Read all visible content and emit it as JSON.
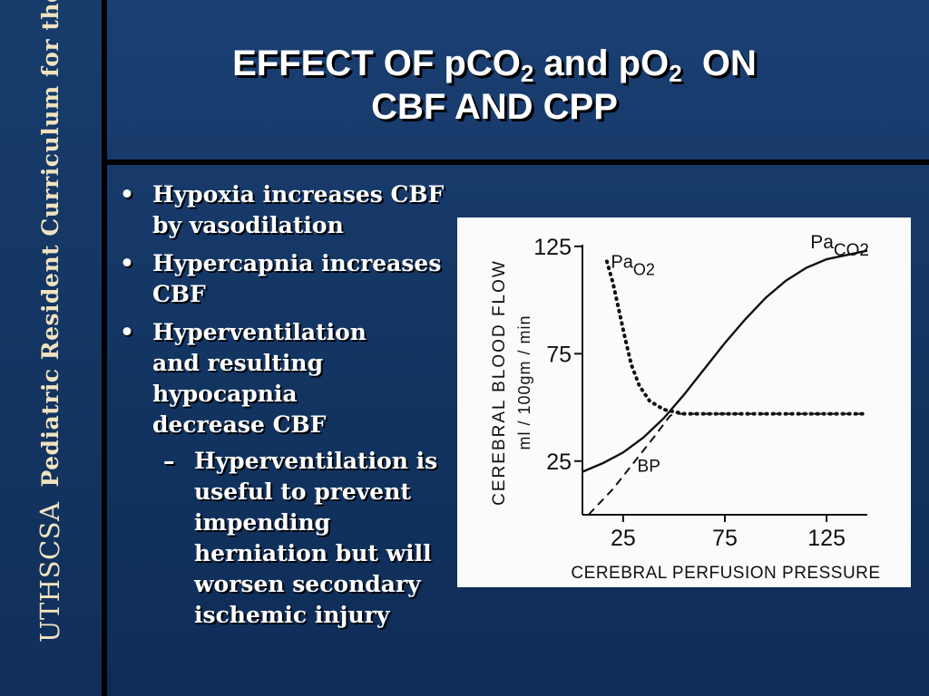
{
  "sidebar": {
    "org": "UTHSCSA",
    "program": "Pediatric Resident Curriculum for the PICU"
  },
  "title": {
    "line1_a": "EFFECT OF pCO",
    "line1_sub1": "2",
    "line1_b": " and pO",
    "line1_sub2": "2",
    "line1_c": "  ON",
    "line2": "CBF AND CPP"
  },
  "bullets": [
    {
      "bullet": "•",
      "text": "Hypoxia increases CBF by vasodilation"
    },
    {
      "bullet": "•",
      "text": "Hypercapnia increases CBF"
    },
    {
      "bullet": "•",
      "text": "Hyperventilation and resulting hypocapnia decrease CBF"
    }
  ],
  "sub_bullet": {
    "bullet": "–",
    "text": "Hyperventilation is useful to prevent impending herniation but will worsen secondary ischemic injury"
  },
  "chart_data": {
    "type": "line",
    "xlabel": "CEREBRAL PERFUSION PRESSURE",
    "ylabel": "CEREBRAL BLOOD FLOW",
    "ylabel_units": "ml / 100gm / min",
    "x_ticks": [
      25,
      75,
      125
    ],
    "y_ticks": [
      25,
      75,
      125
    ],
    "xlim": [
      5,
      145
    ],
    "ylim": [
      0,
      130
    ],
    "series": [
      {
        "name": "PaCO2",
        "label_main": "Pa",
        "label_sub": "CO2",
        "style": "solid",
        "points": [
          [
            5,
            20
          ],
          [
            15,
            24
          ],
          [
            25,
            29
          ],
          [
            35,
            36
          ],
          [
            45,
            45
          ],
          [
            55,
            56
          ],
          [
            65,
            68
          ],
          [
            75,
            80
          ],
          [
            85,
            91
          ],
          [
            95,
            101
          ],
          [
            105,
            109
          ],
          [
            115,
            115
          ],
          [
            125,
            119
          ],
          [
            135,
            121
          ],
          [
            145,
            123
          ]
        ]
      },
      {
        "name": "PaO2",
        "label_main": "Pa",
        "label_sub": "O2",
        "style": "dotted",
        "points": [
          [
            17,
            118
          ],
          [
            20,
            108
          ],
          [
            23,
            95
          ],
          [
            26,
            82
          ],
          [
            29,
            70
          ],
          [
            33,
            60
          ],
          [
            38,
            53
          ],
          [
            45,
            49
          ],
          [
            55,
            47
          ],
          [
            75,
            47
          ],
          [
            100,
            47
          ],
          [
            125,
            47
          ],
          [
            145,
            47
          ]
        ]
      },
      {
        "name": "BP",
        "label_main": "BP",
        "label_sub": "",
        "style": "dashed",
        "points": [
          [
            8,
            0
          ],
          [
            20,
            12
          ],
          [
            30,
            24
          ],
          [
            40,
            36
          ],
          [
            48,
            46
          ],
          [
            50,
            47
          ],
          [
            145,
            47
          ]
        ]
      }
    ]
  }
}
